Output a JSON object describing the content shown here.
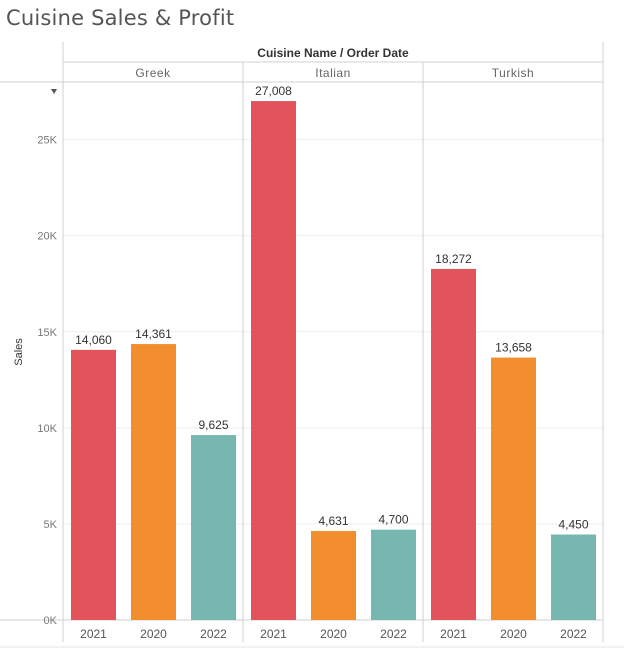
{
  "page": {
    "title": "Cuisine Sales & Profit"
  },
  "chart_data": {
    "type": "bar",
    "column_header": "Cuisine Name / Order Date",
    "ylabel": "Sales",
    "ylim": [
      0,
      28000
    ],
    "yticks": [
      0,
      5000,
      10000,
      15000,
      20000,
      25000
    ],
    "ytick_labels": [
      "0K",
      "5K",
      "10K",
      "15K",
      "20K",
      "25K"
    ],
    "grid": true,
    "legend": "none",
    "colors": {
      "2021": "#e2545b",
      "2020": "#f28e2d",
      "2022": "#76b7b0"
    },
    "panels": [
      {
        "name": "Greek",
        "bars": [
          {
            "category": "2021",
            "value": 14060,
            "label": "14,060"
          },
          {
            "category": "2020",
            "value": 14361,
            "label": "14,361"
          },
          {
            "category": "2022",
            "value": 9625,
            "label": "9,625"
          }
        ]
      },
      {
        "name": "Italian",
        "bars": [
          {
            "category": "2021",
            "value": 27008,
            "label": "27,008"
          },
          {
            "category": "2020",
            "value": 4631,
            "label": "4,631"
          },
          {
            "category": "2022",
            "value": 4700,
            "label": "4,700"
          }
        ]
      },
      {
        "name": "Turkish",
        "bars": [
          {
            "category": "2021",
            "value": 18272,
            "label": "18,272"
          },
          {
            "category": "2020",
            "value": 13658,
            "label": "13,658"
          },
          {
            "category": "2022",
            "value": 4450,
            "label": "4,450"
          }
        ]
      }
    ]
  }
}
